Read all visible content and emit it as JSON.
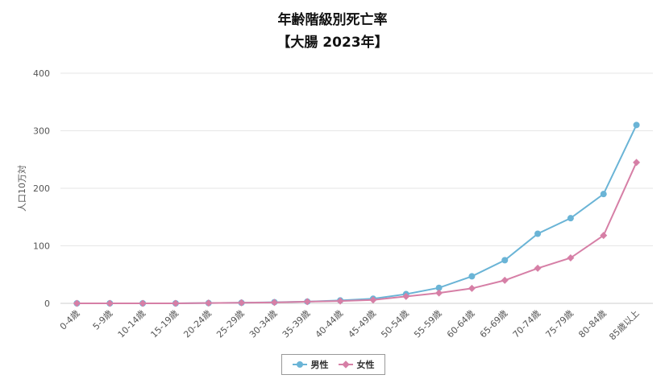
{
  "chart_data": {
    "type": "line",
    "title": "年齢階級別死亡率",
    "subtitle": "【大腸 2023年】",
    "ylabel": "人口10万対",
    "xlabel": "",
    "ylim": [
      0,
      400
    ],
    "yticks": [
      0,
      100,
      200,
      300,
      400
    ],
    "grid": true,
    "legend_position": "bottom",
    "categories": [
      "0-4歳",
      "5-9歳",
      "10-14歳",
      "15-19歳",
      "20-24歳",
      "25-29歳",
      "30-34歳",
      "35-39歳",
      "40-44歳",
      "45-49歳",
      "50-54歳",
      "55-59歳",
      "60-64歳",
      "65-69歳",
      "70-74歳",
      "75-79歳",
      "80-84歳",
      "85歳以上"
    ],
    "series": [
      {
        "name": "男性",
        "color": "#6ab4d6",
        "marker": "circle",
        "values": [
          0,
          0,
          0,
          0,
          0.5,
          1,
          2,
          3,
          5,
          8,
          16,
          27,
          47,
          75,
          121,
          148,
          190,
          310
        ]
      },
      {
        "name": "女性",
        "color": "#d67fa6",
        "marker": "diamond",
        "values": [
          0,
          0,
          0,
          0,
          0.5,
          1,
          1.5,
          3,
          4,
          6,
          12,
          18,
          26,
          40,
          61,
          79,
          118,
          245
        ]
      }
    ]
  }
}
